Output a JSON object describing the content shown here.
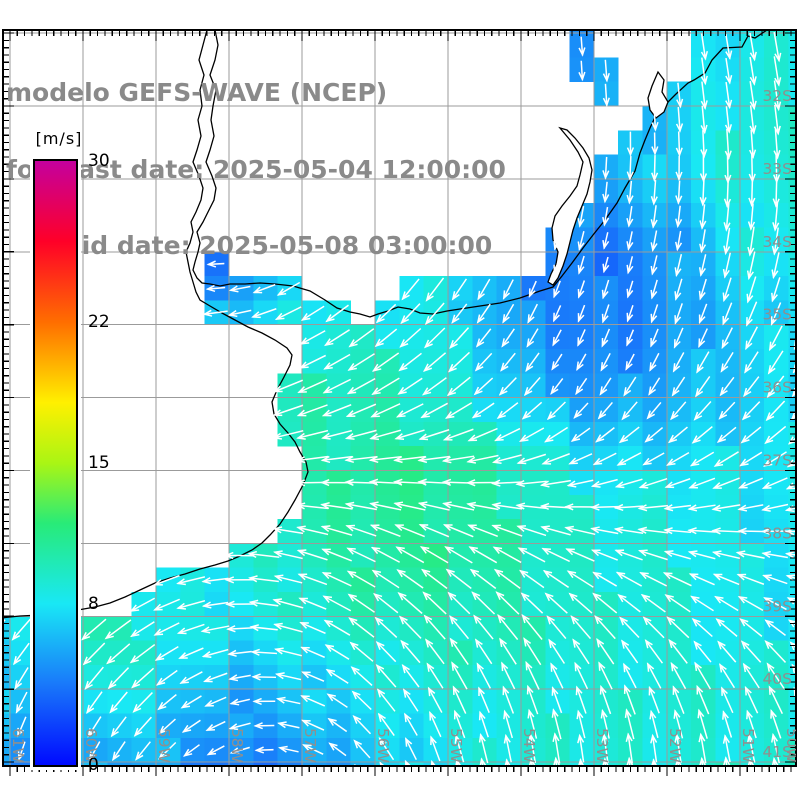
{
  "title": {
    "line1": "modelo GEFS-WAVE (NCEP)",
    "line2": "forecast date: 2025-05-04 12:00:00",
    "line3": "valid date: 2025-05-08 03:00:00",
    "color": "#8a8a8a"
  },
  "colorbar": {
    "unit_label": "[m/s]",
    "min": 0,
    "max": 30,
    "tick_labels": [
      "30",
      "22",
      "15",
      "8",
      "0"
    ],
    "tick_values": [
      30,
      22,
      15,
      8,
      0
    ]
  },
  "axes": {
    "lon_labels": [
      "61W",
      "60W",
      "59W",
      "58W",
      "57W",
      "56W",
      "55W",
      "54W",
      "53W",
      "52W",
      "51W",
      "50W"
    ],
    "lat_labels": [
      "32S",
      "33S",
      "34S",
      "35S",
      "36S",
      "37S",
      "38S",
      "39S",
      "40S",
      "41S"
    ],
    "label_color": "#8f8f8f",
    "grid_color": "#9b9b9b"
  },
  "chart_data": {
    "type": "heatmap",
    "title": "modelo GEFS-WAVE (NCEP)",
    "subtitle": "forecast date: 2025-05-04 12:00:00 / valid date: 2025-05-08 03:00:00",
    "units": "m/s",
    "legend_position": "left",
    "grid": "on",
    "xlabel": "longitude",
    "ylabel": "latitude",
    "xlim": [
      -61.1,
      -50.2
    ],
    "ylim": [
      -41.6,
      -31.0
    ],
    "lons": [
      -61,
      -60,
      -59,
      -58,
      -57,
      -56,
      -55,
      -54,
      -53,
      -52,
      -51,
      -50
    ],
    "lats": [
      -31,
      -32,
      -33,
      -34,
      -35,
      -36,
      -37,
      -38,
      -39,
      -40,
      -41,
      -42
    ],
    "speed_ms": [
      [
        4,
        4,
        4,
        4,
        4,
        4,
        4,
        4,
        5,
        6,
        8,
        9
      ],
      [
        3,
        3,
        3,
        3,
        3,
        3,
        3,
        4,
        6,
        7,
        9,
        9
      ],
      [
        4,
        4,
        4,
        4,
        4,
        4,
        4,
        5,
        6,
        7,
        9,
        9
      ],
      [
        4,
        4,
        4,
        4,
        5,
        6,
        9,
        5,
        4,
        5,
        8,
        9
      ],
      [
        4,
        4,
        5,
        7,
        9,
        9,
        8,
        5,
        4,
        5,
        7,
        8
      ],
      [
        5,
        5,
        5,
        8,
        10,
        10,
        9,
        7,
        5,
        6,
        7,
        8
      ],
      [
        6,
        6,
        6,
        8,
        10,
        11,
        11,
        10,
        8,
        8,
        8,
        8
      ],
      [
        5,
        5,
        7,
        9,
        10,
        11,
        11,
        10,
        9,
        9,
        8,
        8
      ],
      [
        8,
        11,
        9,
        8,
        9,
        10,
        10,
        10,
        9,
        9,
        8,
        8
      ],
      [
        7,
        9,
        8,
        6,
        7,
        8,
        9,
        9,
        9,
        9,
        9,
        9
      ],
      [
        5,
        6,
        6,
        4,
        5,
        7,
        8,
        9,
        9,
        9,
        9,
        9
      ],
      [
        4,
        5,
        3,
        2,
        3,
        6,
        8,
        9,
        9,
        9,
        10,
        10
      ]
    ],
    "direction_toward_deg": [
      [
        180,
        180,
        180,
        180,
        180,
        180,
        180,
        178,
        175,
        172,
        170,
        170
      ],
      [
        185,
        185,
        185,
        185,
        185,
        185,
        183,
        180,
        177,
        175,
        172,
        172
      ],
      [
        268,
        268,
        268,
        230,
        210,
        200,
        195,
        190,
        185,
        182,
        180,
        180
      ],
      [
        270,
        270,
        270,
        268,
        228,
        215,
        210,
        200,
        195,
        192,
        190,
        190
      ],
      [
        268,
        268,
        268,
        260,
        242,
        230,
        222,
        210,
        200,
        200,
        205,
        205
      ],
      [
        258,
        258,
        255,
        252,
        248,
        242,
        235,
        225,
        215,
        215,
        220,
        220
      ],
      [
        250,
        250,
        252,
        258,
        265,
        268,
        268,
        260,
        250,
        245,
        242,
        240
      ],
      [
        235,
        240,
        250,
        268,
        285,
        295,
        298,
        295,
        288,
        282,
        278,
        272
      ],
      [
        222,
        230,
        242,
        265,
        290,
        310,
        318,
        318,
        315,
        310,
        305,
        300
      ],
      [
        208,
        215,
        228,
        252,
        288,
        318,
        332,
        338,
        338,
        336,
        332,
        330
      ],
      [
        195,
        205,
        220,
        245,
        290,
        325,
        345,
        352,
        355,
        355,
        352,
        350
      ],
      [
        190,
        200,
        215,
        240,
        290,
        330,
        350,
        356,
        358,
        358,
        355,
        352
      ]
    ],
    "colormap_stops": [
      [
        0,
        "#000aff"
      ],
      [
        4,
        "#1978fa"
      ],
      [
        8,
        "#19e8f5"
      ],
      [
        12,
        "#28eb78"
      ],
      [
        15,
        "#aaf514"
      ],
      [
        18,
        "#fff000"
      ],
      [
        22,
        "#ff6e00"
      ],
      [
        26,
        "#ff0028"
      ],
      [
        30,
        "#c4009e"
      ]
    ],
    "arrow_color": "#ffffff"
  }
}
